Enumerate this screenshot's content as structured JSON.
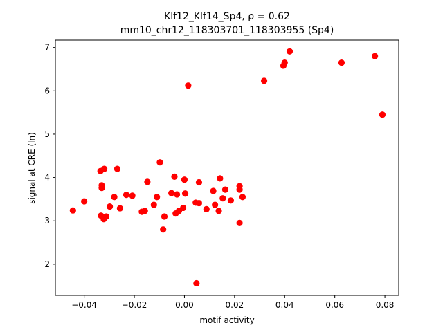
{
  "chart_data": {
    "type": "scatter",
    "title_line1": "Klf12_Klf14_Sp4, ρ = 0.62",
    "title_line2": "mm10_chr12_118303701_118303955 (Sp4)",
    "xlabel": "motif activity",
    "ylabel": "signal at CRE (ln)",
    "xlim": [
      -0.0515,
      0.0855
    ],
    "ylim": [
      1.28,
      7.17
    ],
    "xticks": [
      -0.04,
      -0.02,
      0.0,
      0.02,
      0.04,
      0.06,
      0.08
    ],
    "xtick_labels": [
      "−0.04",
      "−0.02",
      "0.00",
      "0.02",
      "0.04",
      "0.06",
      "0.08"
    ],
    "yticks": [
      2,
      3,
      4,
      5,
      6,
      7
    ],
    "ytick_labels": [
      "2",
      "3",
      "4",
      "5",
      "6",
      "7"
    ],
    "grid": false,
    "marker_color": "#ff0000",
    "points": [
      [
        -0.0445,
        3.24
      ],
      [
        -0.04,
        3.45
      ],
      [
        -0.0335,
        4.15
      ],
      [
        -0.032,
        4.2
      ],
      [
        -0.033,
        3.82
      ],
      [
        -0.033,
        3.76
      ],
      [
        -0.0333,
        3.12
      ],
      [
        -0.0322,
        3.04
      ],
      [
        -0.0312,
        3.1
      ],
      [
        -0.0298,
        3.33
      ],
      [
        -0.028,
        3.55
      ],
      [
        -0.0268,
        4.2
      ],
      [
        -0.0257,
        3.29
      ],
      [
        -0.0232,
        3.6
      ],
      [
        -0.0208,
        3.58
      ],
      [
        -0.017,
        3.21
      ],
      [
        -0.0158,
        3.23
      ],
      [
        -0.0148,
        3.9
      ],
      [
        -0.0122,
        3.37
      ],
      [
        -0.011,
        3.55
      ],
      [
        -0.0098,
        4.35
      ],
      [
        -0.0085,
        2.8
      ],
      [
        -0.008,
        3.1
      ],
      [
        -0.0052,
        3.64
      ],
      [
        -0.004,
        4.02
      ],
      [
        -0.0035,
        3.17
      ],
      [
        -0.003,
        3.61
      ],
      [
        -0.0022,
        3.23
      ],
      [
        -0.0005,
        3.3
      ],
      [
        0.0,
        3.95
      ],
      [
        0.0003,
        3.63
      ],
      [
        0.0015,
        6.12
      ],
      [
        0.0045,
        3.42
      ],
      [
        0.0048,
        1.56
      ],
      [
        0.0058,
        3.89
      ],
      [
        0.0058,
        3.41
      ],
      [
        0.0088,
        3.27
      ],
      [
        0.0115,
        3.69
      ],
      [
        0.0122,
        3.37
      ],
      [
        0.0137,
        3.23
      ],
      [
        0.0142,
        3.98
      ],
      [
        0.0153,
        3.52
      ],
      [
        0.0163,
        3.72
      ],
      [
        0.0185,
        3.47
      ],
      [
        0.022,
        3.8
      ],
      [
        0.022,
        3.72
      ],
      [
        0.022,
        2.95
      ],
      [
        0.0232,
        3.55
      ],
      [
        0.0318,
        6.23
      ],
      [
        0.0395,
        6.58
      ],
      [
        0.04,
        6.65
      ],
      [
        0.042,
        6.91
      ],
      [
        0.0627,
        6.65
      ],
      [
        0.076,
        6.8
      ],
      [
        0.079,
        5.45
      ]
    ]
  }
}
